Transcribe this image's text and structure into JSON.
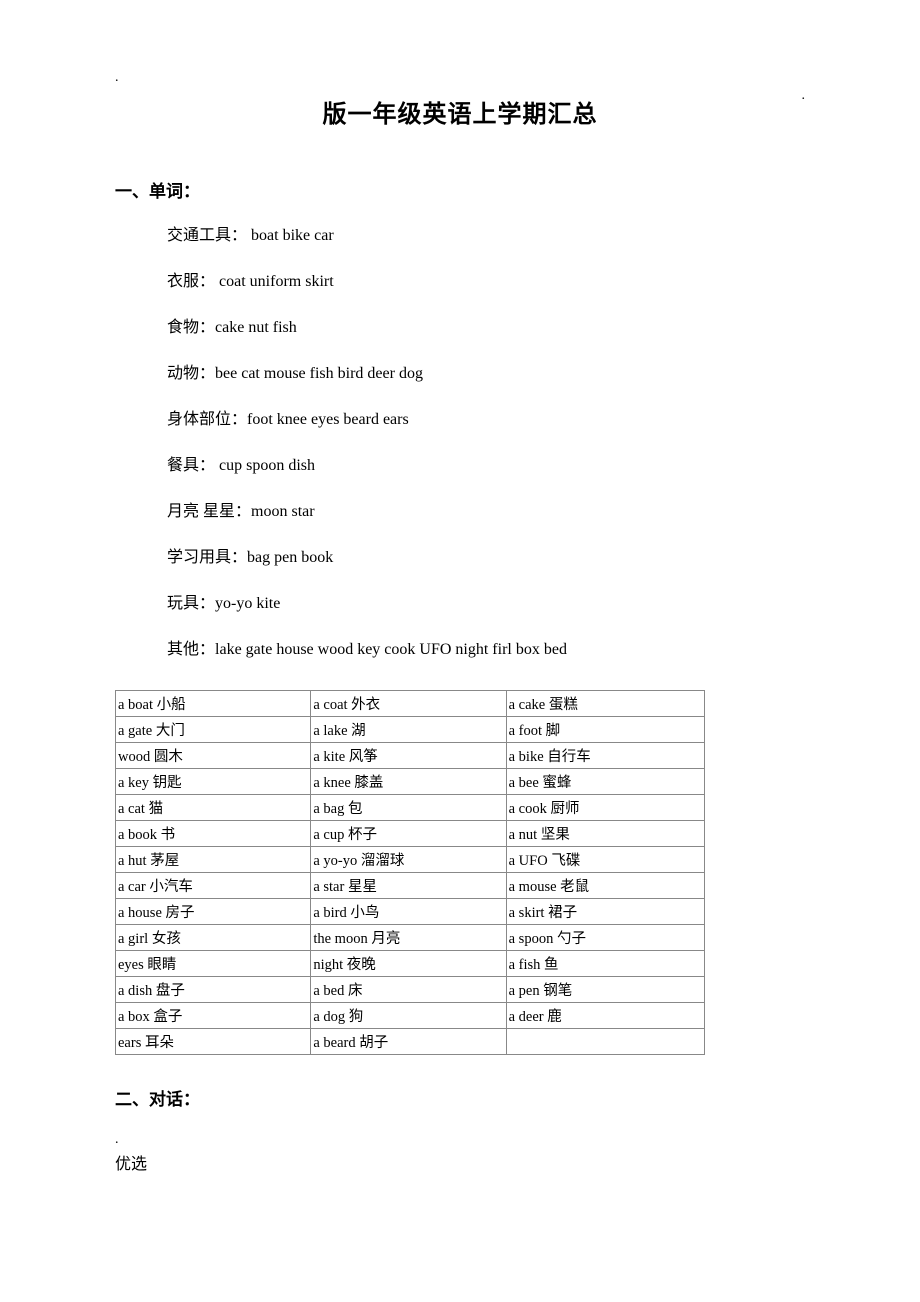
{
  "decor": {
    "dot": "."
  },
  "title": "版一年级英语上学期汇总",
  "section1": {
    "heading": "一、单词：",
    "lines": [
      {
        "zh": "交通工具：",
        "en": "    boat       bike car"
      },
      {
        "zh": "衣服：",
        "en": "    coat      uniform       skirt"
      },
      {
        "zh": "食物：",
        "en": "cake nut fish"
      },
      {
        "zh": "动物：",
        "en": "bee cat mouse fish bird deer dog"
      },
      {
        "zh": "身体部位：",
        "en": "foot knee eyes beard ears"
      },
      {
        "zh": "餐具：",
        "en": "   cup spoon dish"
      },
      {
        "zh": "月亮  星星：",
        "en": "moon star"
      },
      {
        "zh": "学习用具：",
        "en": "bag pen book"
      },
      {
        "zh": "玩具：",
        "en": "yo-yo kite"
      },
      {
        "zh": "其他：",
        "en": "lake gate house wood key cook UFO night firl box bed"
      }
    ]
  },
  "table": {
    "rows": [
      [
        "a boat 小船",
        "a coat 外衣",
        "a cake 蛋糕"
      ],
      [
        "a gate 大门",
        "a lake 湖",
        "a foot 脚"
      ],
      [
        "wood 圆木",
        "a kite 风筝",
        "a bike 自行车"
      ],
      [
        "a key 钥匙",
        "a knee 膝盖",
        "a bee 蜜蜂"
      ],
      [
        "a cat 猫",
        "a bag 包",
        "a cook 厨师"
      ],
      [
        "a book 书",
        "a cup 杯子",
        "a nut 坚果"
      ],
      [
        "a hut 茅屋",
        "a yo-yo 溜溜球",
        "a UFO 飞碟"
      ],
      [
        "a car 小汽车",
        "a star 星星",
        "a mouse 老鼠"
      ],
      [
        "a house 房子",
        "a bird 小鸟",
        "a skirt 裙子"
      ],
      [
        "a girl 女孩",
        "the moon 月亮",
        "a spoon 勺子"
      ],
      [
        "eyes 眼睛",
        "night 夜晚",
        "a fish 鱼"
      ],
      [
        "a dish 盘子",
        "a bed 床",
        "a pen 钢笔"
      ],
      [
        "a box 盒子",
        "a dog 狗",
        "a deer 鹿"
      ],
      [
        "ears 耳朵",
        "a beard 胡子",
        ""
      ]
    ]
  },
  "section2": {
    "heading": "二、对话："
  },
  "footer": {
    "dot": ".",
    "text": "优选"
  },
  "colors": {
    "text": "#000000",
    "bg": "#ffffff",
    "border": "#888888"
  }
}
